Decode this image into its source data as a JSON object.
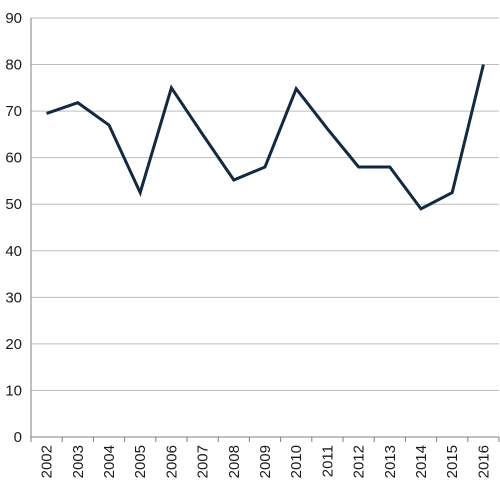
{
  "chart_data": {
    "type": "line",
    "title": "",
    "xlabel": "",
    "ylabel": "",
    "categories": [
      "2002",
      "2003",
      "2004",
      "2005",
      "2006",
      "2007",
      "2008",
      "2009",
      "2010",
      "2011",
      "2012",
      "2013",
      "2014",
      "2015",
      "2016"
    ],
    "series": [
      {
        "values": [
          69.5,
          71.8,
          67,
          52.5,
          75,
          65,
          55.2,
          58,
          74.8,
          66.2,
          58,
          58,
          49,
          52.5,
          80
        ]
      }
    ],
    "ylim": [
      0,
      90
    ],
    "yticks": [
      0,
      10,
      20,
      30,
      40,
      50,
      60,
      70,
      80,
      90
    ],
    "grid": "horizontal",
    "legend": "none",
    "colors": {
      "line": "#13293f",
      "grid": "#bdbdbd",
      "axis": "#7f7f7f",
      "text": "#1a1a1a"
    }
  }
}
